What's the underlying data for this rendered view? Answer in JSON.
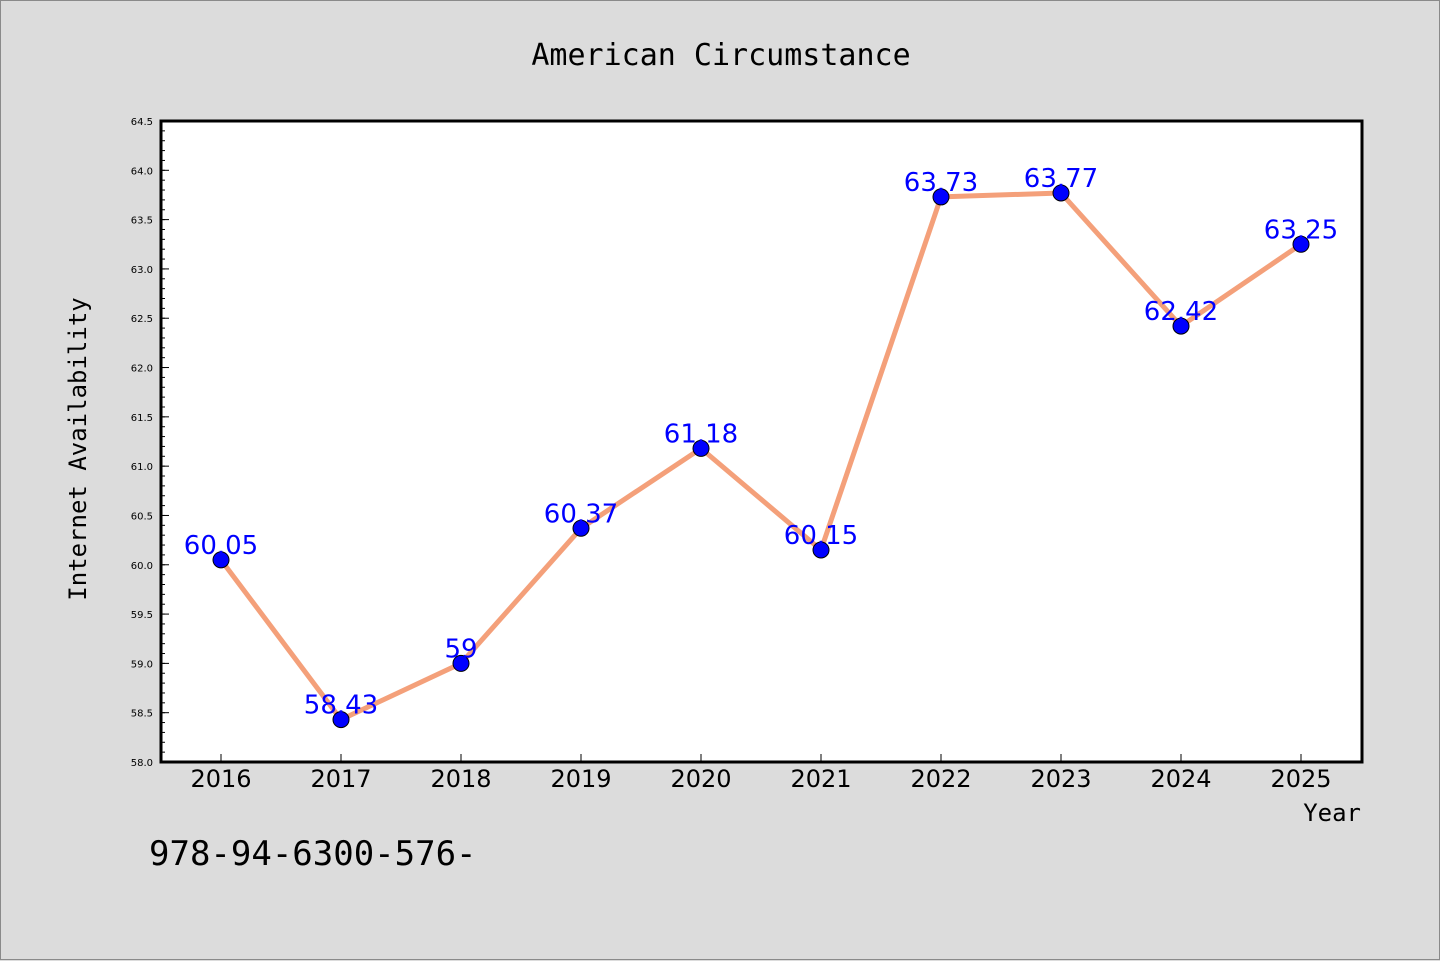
{
  "chart_data": {
    "type": "line",
    "title": "American Circumstance",
    "xlabel": "Year",
    "ylabel": "Internet Availability",
    "categories": [
      "2016",
      "2017",
      "2018",
      "2019",
      "2020",
      "2021",
      "2022",
      "2023",
      "2024",
      "2025"
    ],
    "values": [
      60.05,
      58.43,
      59,
      60.37,
      61.18,
      60.15,
      63.73,
      63.77,
      62.42,
      63.25
    ],
    "data_labels": [
      "60.05",
      "58.43",
      "59",
      "60.37",
      "61.18",
      "60.15",
      "63.73",
      "63.77",
      "62.42",
      "63.25"
    ],
    "ylim": [
      58.0,
      64.5
    ],
    "yticks": [
      "58.0",
      "58.5",
      "59.0",
      "59.5",
      "60.0",
      "60.5",
      "61.0",
      "61.5",
      "62.0",
      "62.5",
      "63.0",
      "63.5",
      "64.0",
      "64.5"
    ],
    "grid": false,
    "line_color": "#f4a07a",
    "marker_color": "#0000ff",
    "label_color": "#0000ff"
  },
  "annotation": "978-94-6300-576-"
}
